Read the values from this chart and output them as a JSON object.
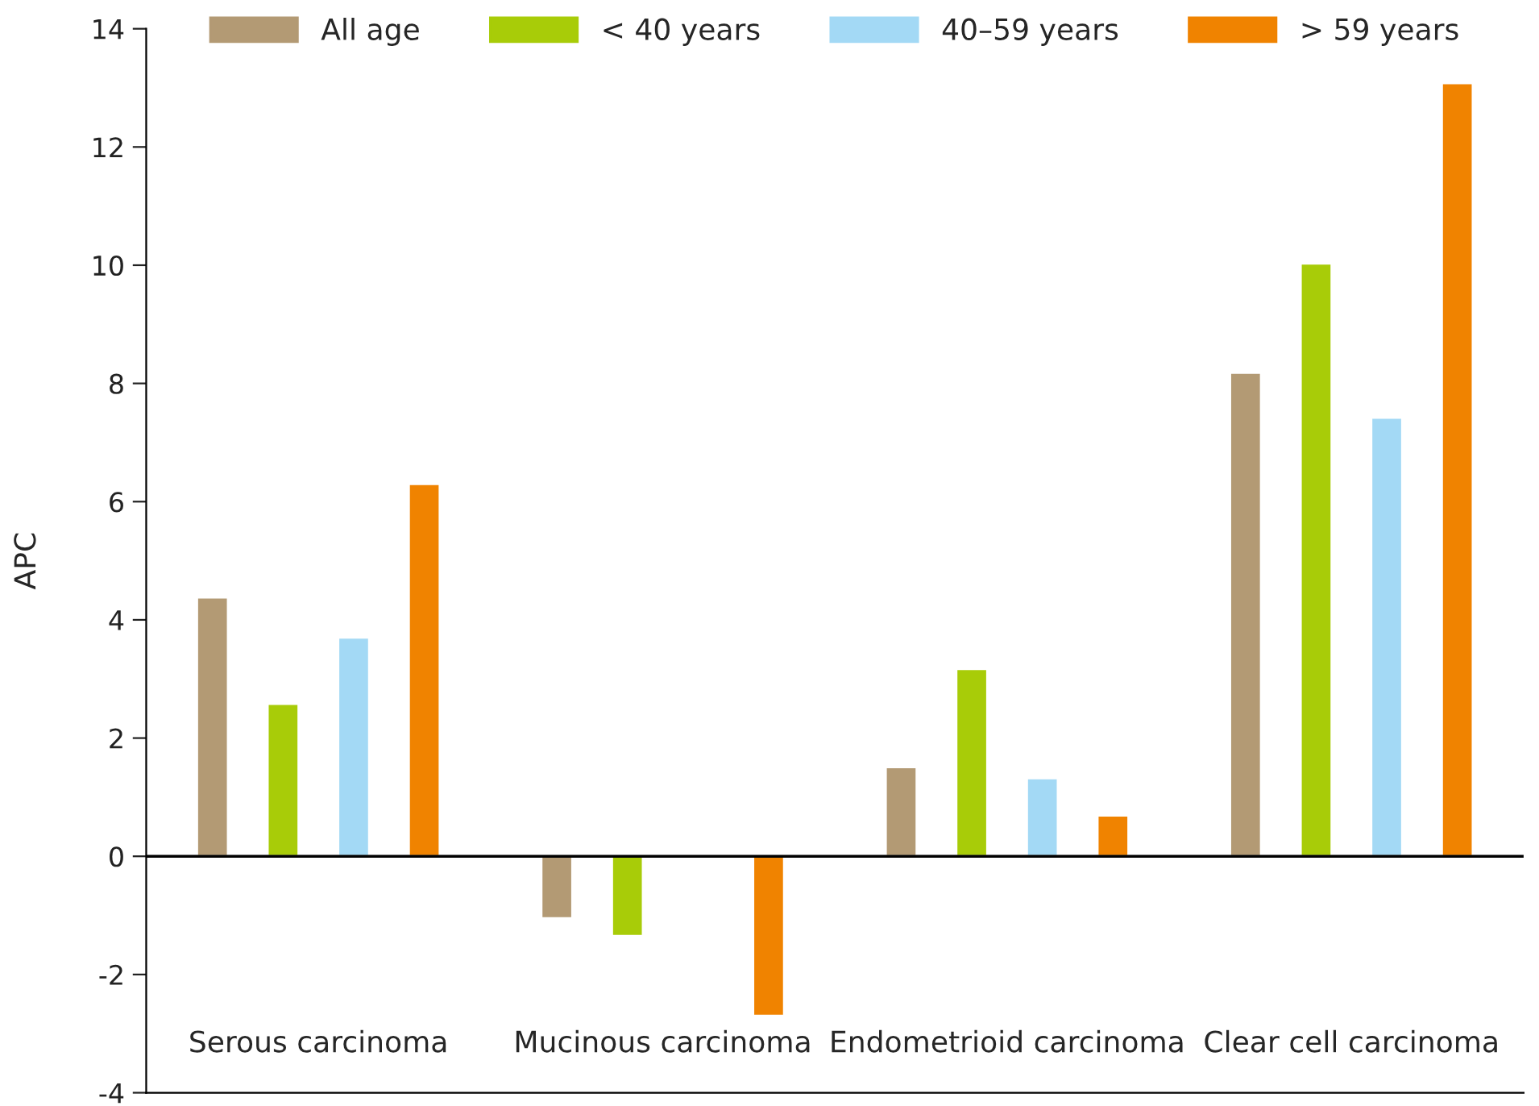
{
  "chart_data": {
    "type": "bar",
    "ylabel": "APC",
    "categories": [
      "Serous carcinoma",
      "Mucinous carcinoma",
      "Endometrioid carcinoma",
      "Clear cell carcinoma"
    ],
    "series": [
      {
        "name": "All age",
        "color": "#b39a74",
        "values": [
          4.38,
          -1.05,
          1.51,
          8.18
        ]
      },
      {
        "name": "< 40 years",
        "color": "#a8cc08",
        "values": [
          2.58,
          -1.35,
          3.17,
          10.03
        ]
      },
      {
        "name": "40–59 years",
        "color": "#a3d9f5",
        "values": [
          3.7,
          null,
          1.32,
          7.42
        ]
      },
      {
        "name": "> 59 years",
        "color": "#f08300",
        "values": [
          6.3,
          -2.7,
          0.69,
          13.08
        ]
      }
    ],
    "ylim": [
      -4,
      14
    ],
    "yticks": [
      -4,
      -2,
      0,
      2,
      4,
      6,
      8,
      10,
      12,
      14
    ],
    "ref_lines": [
      {
        "axis": "y",
        "value": 0,
        "color": "#000000"
      }
    ],
    "grid": false,
    "legend": "top"
  }
}
